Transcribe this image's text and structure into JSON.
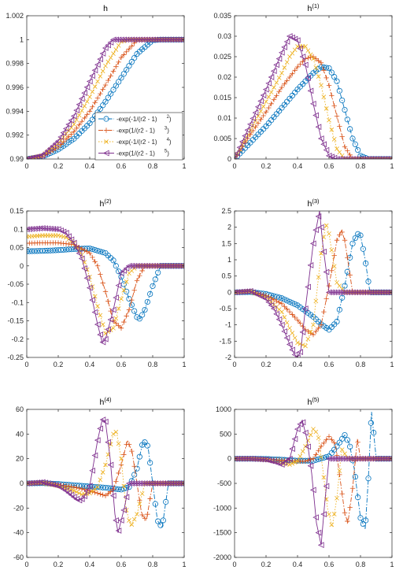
{
  "chart_data": [
    {
      "type": "line",
      "title": "h",
      "xlim": [
        0,
        1
      ],
      "ylim": [
        0.99,
        1.002
      ],
      "xticks": [
        "0",
        "0.2",
        "0.4",
        "0.6",
        "0.8",
        "1"
      ],
      "yticks": [
        "0.99",
        "0.992",
        "0.994",
        "0.996",
        "0.998",
        "1",
        "1.002"
      ],
      "legend_position": "lower-right",
      "series": [
        {
          "name": "-exp(-1/(r2 - 1)",
          "sup": "2",
          "name_end": ")",
          "color": "#0072BD",
          "marker": "circle",
          "dash": "dash-dot",
          "x": [
            0,
            0.1,
            0.2,
            0.3,
            0.4,
            0.5,
            0.6,
            0.7,
            0.8,
            0.85,
            0.9,
            1
          ],
          "values": [
            0.99,
            0.9902,
            0.9908,
            0.9917,
            0.993,
            0.9948,
            0.9968,
            0.9988,
            0.99995,
            1,
            1,
            1
          ]
        },
        {
          "name": "-exp(1/(r2 - 1)",
          "sup": "3",
          "name_end": ")",
          "color": "#D95319",
          "marker": "plus",
          "dash": "dash-dot",
          "x": [
            0,
            0.1,
            0.2,
            0.3,
            0.4,
            0.5,
            0.6,
            0.7,
            0.75,
            0.8,
            1
          ],
          "values": [
            0.99,
            0.9902,
            0.991,
            0.9923,
            0.994,
            0.9962,
            0.9985,
            0.99995,
            1,
            1,
            1
          ]
        },
        {
          "name": "-exp(-1/(r2 - 1)",
          "sup": "4",
          "name_end": ")",
          "color": "#EDB120",
          "marker": "x",
          "dash": "dot",
          "x": [
            0,
            0.1,
            0.2,
            0.3,
            0.4,
            0.5,
            0.6,
            0.65,
            0.7,
            1
          ],
          "values": [
            0.99,
            0.9903,
            0.9913,
            0.9929,
            0.9952,
            0.9978,
            0.99985,
            1,
            1,
            1
          ]
        },
        {
          "name": "-exp(1/(r2 - 1)",
          "sup": "5",
          "name_end": ")",
          "color": "#7E2F8E",
          "marker": "triangle-left",
          "dash": "solid",
          "x": [
            0,
            0.1,
            0.2,
            0.3,
            0.4,
            0.5,
            0.55,
            0.6,
            1
          ],
          "values": [
            0.99,
            0.9903,
            0.9915,
            0.9936,
            0.9965,
            0.9993,
            1,
            1,
            1
          ]
        }
      ]
    },
    {
      "type": "line",
      "title": "h",
      "title_sup": "(1)",
      "xlim": [
        0,
        1
      ],
      "ylim": [
        0,
        0.035
      ],
      "xticks": [
        "0",
        "0.2",
        "0.4",
        "0.6",
        "0.8",
        "1"
      ],
      "yticks": [
        "0",
        "0.005",
        "0.01",
        "0.015",
        "0.02",
        "0.025",
        "0.03",
        "0.035"
      ],
      "series": [
        {
          "color": "#0072BD",
          "marker": "circle",
          "dash": "dash-dot",
          "x": [
            0,
            0.1,
            0.2,
            0.3,
            0.4,
            0.5,
            0.55,
            0.6,
            0.65,
            0.7,
            0.75,
            0.8,
            0.85,
            1
          ],
          "values": [
            0,
            0.004,
            0.008,
            0.0125,
            0.017,
            0.021,
            0.0225,
            0.0222,
            0.019,
            0.012,
            0.005,
            0.0008,
            0,
            0
          ]
        },
        {
          "color": "#D95319",
          "marker": "plus",
          "dash": "dash-dot",
          "x": [
            0,
            0.1,
            0.2,
            0.3,
            0.4,
            0.45,
            0.5,
            0.55,
            0.6,
            0.65,
            0.7,
            0.75,
            1
          ],
          "values": [
            0,
            0.006,
            0.0115,
            0.0175,
            0.0225,
            0.0245,
            0.025,
            0.0235,
            0.018,
            0.0105,
            0.003,
            0,
            0
          ]
        },
        {
          "color": "#EDB120",
          "marker": "x",
          "dash": "dot",
          "x": [
            0,
            0.1,
            0.2,
            0.3,
            0.35,
            0.4,
            0.45,
            0.5,
            0.55,
            0.6,
            0.65,
            0.7,
            1
          ],
          "values": [
            0,
            0.007,
            0.014,
            0.021,
            0.025,
            0.0275,
            0.0275,
            0.0245,
            0.018,
            0.0095,
            0.0025,
            0,
            0
          ]
        },
        {
          "color": "#7E2F8E",
          "marker": "triangle-left",
          "dash": "solid",
          "x": [
            0,
            0.1,
            0.2,
            0.3,
            0.35,
            0.4,
            0.45,
            0.5,
            0.55,
            0.6,
            0.65,
            1
          ],
          "values": [
            0,
            0.0085,
            0.017,
            0.026,
            0.03,
            0.029,
            0.023,
            0.0135,
            0.005,
            0.0008,
            0,
            0
          ]
        }
      ]
    },
    {
      "type": "line",
      "title": "h",
      "title_sup": "(2)",
      "xlim": [
        0,
        1
      ],
      "ylim": [
        -0.25,
        0.15
      ],
      "xticks": [
        "0",
        "0.2",
        "0.4",
        "0.6",
        "0.8",
        "1"
      ],
      "yticks": [
        "-0.25",
        "-0.2",
        "-0.15",
        "-0.1",
        "-0.05",
        "0",
        "0.05",
        "0.1",
        "0.15"
      ],
      "series": [
        {
          "color": "#0072BD",
          "marker": "circle",
          "dash": "dash-dot",
          "x": [
            0,
            0.1,
            0.2,
            0.3,
            0.4,
            0.5,
            0.55,
            0.6,
            0.65,
            0.7,
            0.72,
            0.75,
            0.8,
            0.85,
            1
          ],
          "values": [
            0.04,
            0.041,
            0.043,
            0.046,
            0.048,
            0.035,
            0.015,
            -0.03,
            -0.09,
            -0.14,
            -0.145,
            -0.12,
            -0.055,
            0,
            0
          ]
        },
        {
          "color": "#D95319",
          "marker": "plus",
          "dash": "dash-dot",
          "x": [
            0,
            0.1,
            0.2,
            0.3,
            0.4,
            0.45,
            0.5,
            0.55,
            0.6,
            0.65,
            0.7,
            0.75,
            1
          ],
          "values": [
            0.062,
            0.063,
            0.063,
            0.058,
            0.035,
            0.0,
            -0.07,
            -0.15,
            -0.17,
            -0.12,
            -0.04,
            0,
            0
          ]
        },
        {
          "color": "#EDB120",
          "marker": "x",
          "dash": "dot",
          "x": [
            0,
            0.1,
            0.2,
            0.25,
            0.3,
            0.35,
            0.4,
            0.45,
            0.5,
            0.55,
            0.6,
            0.65,
            0.7,
            1
          ],
          "values": [
            0.08,
            0.083,
            0.083,
            0.078,
            0.062,
            0.03,
            -0.03,
            -0.11,
            -0.185,
            -0.17,
            -0.09,
            -0.02,
            0,
            0
          ]
        },
        {
          "color": "#7E2F8E",
          "marker": "triangle-left",
          "dash": "solid",
          "x": [
            0,
            0.1,
            0.2,
            0.25,
            0.3,
            0.35,
            0.4,
            0.45,
            0.48,
            0.5,
            0.55,
            0.6,
            0.65,
            1
          ],
          "values": [
            0.1,
            0.103,
            0.1,
            0.09,
            0.063,
            0.02,
            -0.06,
            -0.16,
            -0.21,
            -0.2,
            -0.12,
            -0.02,
            0,
            0
          ]
        }
      ]
    },
    {
      "type": "line",
      "title": "h",
      "title_sup": "(3)",
      "xlim": [
        0,
        1
      ],
      "ylim": [
        -2,
        2.5
      ],
      "xticks": [
        "0",
        "0.2",
        "0.4",
        "0.6",
        "0.8",
        "1"
      ],
      "yticks": [
        "-2",
        "-1.5",
        "-1",
        "-0.5",
        "0",
        "0.5",
        "1",
        "1.5",
        "2",
        "2.5"
      ],
      "series": [
        {
          "color": "#0072BD",
          "marker": "circle",
          "dash": "dash-dot",
          "x": [
            0,
            0.1,
            0.2,
            0.3,
            0.4,
            0.5,
            0.55,
            0.6,
            0.65,
            0.7,
            0.75,
            0.78,
            0.8,
            0.83,
            0.86,
            1
          ],
          "values": [
            0,
            0.01,
            -0.05,
            -0.18,
            -0.4,
            -0.75,
            -0.98,
            -1.15,
            -0.9,
            0.2,
            1.5,
            1.8,
            1.75,
            1.0,
            0,
            0
          ]
        },
        {
          "color": "#D95319",
          "marker": "plus",
          "dash": "dash-dot",
          "x": [
            0,
            0.1,
            0.2,
            0.3,
            0.4,
            0.45,
            0.5,
            0.55,
            0.6,
            0.65,
            0.68,
            0.7,
            0.75,
            1
          ],
          "values": [
            0,
            0.02,
            -0.1,
            -0.35,
            -0.85,
            -1.15,
            -1.3,
            -1.0,
            0.2,
            1.6,
            1.9,
            1.6,
            0,
            0
          ]
        },
        {
          "color": "#EDB120",
          "marker": "x",
          "dash": "dot",
          "x": [
            0,
            0.1,
            0.2,
            0.3,
            0.35,
            0.4,
            0.45,
            0.5,
            0.55,
            0.58,
            0.6,
            0.65,
            0.7,
            1
          ],
          "values": [
            0,
            0.03,
            -0.15,
            -0.6,
            -1.1,
            -1.55,
            -1.65,
            -1.0,
            1.2,
            2.1,
            1.8,
            0.3,
            0,
            0
          ]
        },
        {
          "color": "#7E2F8E",
          "marker": "triangle-left",
          "dash": "solid",
          "x": [
            0,
            0.1,
            0.2,
            0.25,
            0.3,
            0.35,
            0.38,
            0.4,
            0.42,
            0.45,
            0.5,
            0.54,
            0.56,
            0.6,
            1
          ],
          "values": [
            0,
            0.04,
            -0.2,
            -0.5,
            -1.0,
            -1.6,
            -1.9,
            -2.0,
            -1.8,
            -0.5,
            1.5,
            2.5,
            1.5,
            0,
            0
          ]
        }
      ]
    },
    {
      "type": "line",
      "title": "h",
      "title_sup": "(4)",
      "xlim": [
        0,
        1
      ],
      "ylim": [
        -60,
        60
      ],
      "xticks": [
        "0",
        "0.2",
        "0.4",
        "0.6",
        "0.8",
        "1"
      ],
      "yticks": [
        "-60",
        "-40",
        "-20",
        "0",
        "20",
        "40",
        "60"
      ],
      "series": [
        {
          "color": "#0072BD",
          "marker": "circle",
          "dash": "dash-dot",
          "x": [
            0,
            0.1,
            0.2,
            0.3,
            0.4,
            0.5,
            0.6,
            0.65,
            0.7,
            0.74,
            0.77,
            0.8,
            0.83,
            0.86,
            0.9,
            1
          ],
          "values": [
            0,
            0.2,
            -0.5,
            -1.5,
            -2.5,
            -3.5,
            -5,
            -3,
            12,
            35,
            30,
            0,
            -30,
            -36,
            0,
            0
          ]
        },
        {
          "color": "#D95319",
          "marker": "plus",
          "dash": "dash-dot",
          "x": [
            0,
            0.1,
            0.2,
            0.3,
            0.4,
            0.45,
            0.5,
            0.55,
            0.6,
            0.64,
            0.67,
            0.7,
            0.73,
            0.76,
            0.8,
            1
          ],
          "values": [
            0,
            0.3,
            -1,
            -3,
            -6,
            -8,
            -10,
            -5,
            15,
            35,
            25,
            0,
            -25,
            -30,
            0,
            0
          ]
        },
        {
          "color": "#EDB120",
          "marker": "x",
          "dash": "dot",
          "x": [
            0,
            0.1,
            0.2,
            0.3,
            0.35,
            0.4,
            0.45,
            0.5,
            0.55,
            0.57,
            0.6,
            0.63,
            0.66,
            0.7,
            0.75,
            1
          ],
          "values": [
            0,
            0.5,
            -2,
            -6,
            -9,
            -8,
            -3,
            15,
            40,
            42,
            20,
            -20,
            -35,
            -25,
            0,
            0
          ]
        },
        {
          "color": "#7E2F8E",
          "marker": "triangle-left",
          "dash": "solid",
          "x": [
            0,
            0.1,
            0.2,
            0.25,
            0.3,
            0.33,
            0.36,
            0.4,
            0.45,
            0.48,
            0.5,
            0.53,
            0.56,
            0.58,
            0.62,
            0.65,
            1
          ],
          "values": [
            0,
            1,
            -2,
            -6,
            -11,
            -14,
            -12,
            -2,
            35,
            52,
            50,
            20,
            -25,
            -40,
            -20,
            0,
            0
          ]
        }
      ]
    },
    {
      "type": "line",
      "title": "h",
      "title_sup": "(5)",
      "xlim": [
        0,
        1
      ],
      "ylim": [
        -2000,
        1000
      ],
      "xticks": [
        "0",
        "0.2",
        "0.4",
        "0.6",
        "0.8",
        "1"
      ],
      "yticks": [
        "-2000",
        "-1500",
        "-1000",
        "-500",
        "0",
        "500",
        "1000"
      ],
      "series": [
        {
          "color": "#0072BD",
          "marker": "circle",
          "dash": "dash-dot",
          "x": [
            0,
            0.1,
            0.2,
            0.3,
            0.4,
            0.5,
            0.6,
            0.65,
            0.7,
            0.73,
            0.76,
            0.8,
            0.83,
            0.85,
            0.87,
            0.9,
            1
          ],
          "values": [
            0,
            0,
            -5,
            -20,
            -40,
            -40,
            50,
            250,
            480,
            300,
            -200,
            -1200,
            -1420,
            -400,
            950,
            0,
            0
          ]
        },
        {
          "color": "#D95319",
          "marker": "plus",
          "dash": "dash-dot",
          "x": [
            0,
            0.1,
            0.2,
            0.3,
            0.4,
            0.45,
            0.5,
            0.55,
            0.6,
            0.64,
            0.67,
            0.7,
            0.72,
            0.75,
            0.78,
            0.8,
            1
          ],
          "values": [
            0,
            0,
            -10,
            -30,
            -50,
            -50,
            0,
            250,
            450,
            300,
            -400,
            -1100,
            -1300,
            -600,
            400,
            0,
            0
          ]
        },
        {
          "color": "#EDB120",
          "marker": "x",
          "dash": "dot",
          "x": [
            0,
            0.1,
            0.2,
            0.3,
            0.35,
            0.4,
            0.45,
            0.5,
            0.53,
            0.56,
            0.59,
            0.62,
            0.65,
            0.68,
            0.72,
            1
          ],
          "values": [
            0,
            0,
            -15,
            -80,
            -120,
            -50,
            250,
            600,
            500,
            -200,
            -1000,
            -1380,
            -800,
            200,
            0,
            0
          ]
        },
        {
          "color": "#7E2F8E",
          "marker": "triangle-left",
          "dash": "solid",
          "x": [
            0,
            0.1,
            0.2,
            0.25,
            0.3,
            0.35,
            0.4,
            0.43,
            0.46,
            0.49,
            0.52,
            0.55,
            0.57,
            0.6,
            0.62,
            1
          ],
          "values": [
            0,
            0,
            -20,
            -60,
            -120,
            0,
            600,
            780,
            400,
            -300,
            -1300,
            -1750,
            -1000,
            0,
            0,
            0
          ]
        }
      ]
    }
  ]
}
